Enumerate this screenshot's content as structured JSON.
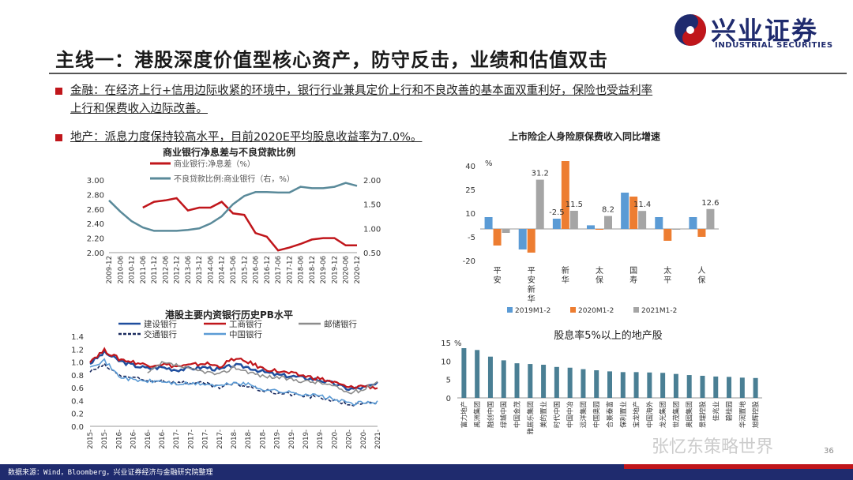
{
  "header": {
    "title": "主线一：港股深度价值型核心资产，防守反击，业绩和估值双击",
    "logo_text": "兴业证券",
    "logo_sub": "INDUSTRIAL SECURITIES"
  },
  "bullets": [
    {
      "line1": "金融：在经济上行+信用边际收紧的环境中，银行行业兼具定价上行和不良改善的基本面双重利好，保险也受益利率",
      "line2": "上行和保费收入边际改善。"
    },
    {
      "line1": "地产：派息力度保持较高水平，目前2020E平均股息收益率为7.0%。",
      "line2": ""
    }
  ],
  "footer": {
    "source": "数据来源：Wind，Bloomberg，兴业证券经济与金融研究院整理",
    "page": "36",
    "watermark": "张忆东策略世界"
  },
  "colors": {
    "brand_blue": "#1f2b6e",
    "brand_red": "#c0161b"
  },
  "chart_data": [
    {
      "type": "line",
      "title": "商业银行净息差与不良贷款比例",
      "x": [
        "2009-12",
        "2010-06",
        "2010-12",
        "2011-06",
        "2011-12",
        "2012-06",
        "2012-12",
        "2013-06",
        "2013-12",
        "2014-06",
        "2014-12",
        "2015-06",
        "2015-12",
        "2016-06",
        "2016-12",
        "2017-06",
        "2017-12",
        "2018-06",
        "2018-12",
        "2019-06",
        "2019-12",
        "2020-06",
        "2020-12"
      ],
      "ylim": [
        2.0,
        3.0
      ],
      "y2lim": [
        0.5,
        2.0
      ],
      "yticks": [
        "3.00",
        "2.80",
        "2.60",
        "2.40",
        "2.20",
        "2.00"
      ],
      "y2ticks": [
        "2.00",
        "1.50",
        "1.00",
        "0.50"
      ],
      "series": [
        {
          "name": "商业银行:净息差（%）",
          "axis": "left",
          "color": "#c0161b",
          "values": [
            null,
            null,
            null,
            2.62,
            2.7,
            2.72,
            2.75,
            2.58,
            2.62,
            2.62,
            2.7,
            2.54,
            2.52,
            2.27,
            2.22,
            2.03,
            2.07,
            2.12,
            2.18,
            2.2,
            2.2,
            2.1,
            2.1
          ]
        },
        {
          "name": "不良贷款比例:商业银行（右，%）",
          "axis": "right",
          "color": "#5a8a9a",
          "values": [
            1.58,
            1.35,
            1.15,
            1.02,
            0.95,
            0.95,
            0.95,
            0.97,
            1.0,
            1.1,
            1.25,
            1.5,
            1.67,
            1.75,
            1.75,
            1.74,
            1.74,
            1.86,
            1.83,
            1.83,
            1.86,
            1.94,
            1.88
          ]
        }
      ]
    },
    {
      "type": "bar",
      "title": "上市险企人身险原保费收入同比增速",
      "ylabel": "%",
      "ylim": [
        -20,
        45
      ],
      "yticks": [
        "40",
        "25",
        "10",
        "-5",
        "-20"
      ],
      "categories": [
        "平安",
        "平安新华",
        "新华",
        "太保",
        "国寿",
        "太平",
        "人保"
      ],
      "category_lines": [
        [
          "平",
          "安"
        ],
        [
          "平",
          "安",
          "新",
          "华"
        ],
        [
          "新",
          "华"
        ],
        [
          "太",
          "保"
        ],
        [
          "国",
          "寿"
        ],
        [
          "太",
          "平"
        ],
        [
          "人",
          "保"
        ]
      ],
      "series": [
        {
          "name": "2019M1-2",
          "color": "#5b9bd5",
          "values": [
            7.5,
            -13,
            6.5,
            2.3,
            23,
            7.5,
            7.5
          ]
        },
        {
          "name": "2020M1-2",
          "color": "#ed7d31",
          "values": [
            -10.5,
            -15,
            43,
            -0.5,
            20.5,
            -7.5,
            -5
          ]
        },
        {
          "name": "2021M1-2",
          "color": "#a5a5a5",
          "values": [
            -2.5,
            31.2,
            11.5,
            8.2,
            11.4,
            -0.5,
            12.6
          ]
        }
      ],
      "data_labels": [
        "31.2",
        "-2.5",
        "11.5",
        "8.2",
        "11.4",
        "12.6"
      ]
    },
    {
      "type": "line",
      "title": "港股主要内资银行历史PB水平",
      "ylim": [
        0,
        1.4
      ],
      "yticks": [
        "1.4",
        "1.2",
        "1.0",
        "0.8",
        "0.6",
        "0.4",
        "0.2",
        "0.0"
      ],
      "x": [
        "2015-",
        "2015-",
        "2016-",
        "2016-",
        "2016-",
        "2016-",
        "2017-",
        "2017-",
        "2017-",
        "2017-",
        "2018-",
        "2018-",
        "2018-",
        "2019-",
        "2019-",
        "2019-",
        "2019-",
        "2020-",
        "2020-",
        "2020-",
        "2021-"
      ],
      "series": [
        {
          "name": "建设银行",
          "color": "#1f4e9e"
        },
        {
          "name": "工商银行",
          "color": "#c0161b"
        },
        {
          "name": "邮储银行",
          "color": "#8c8c8c"
        },
        {
          "name": "交通银行",
          "color": "#1a2a5e"
        },
        {
          "name": "中国银行",
          "color": "#5b9bd5"
        }
      ]
    },
    {
      "type": "bar",
      "title": "股息率5%以上的地产股",
      "ylabel": "%",
      "ylim": [
        0,
        15
      ],
      "yticks": [
        "15",
        "10",
        "5",
        "0"
      ],
      "color": "#4a7f94",
      "categories": [
        "富力地产",
        "禹洲集团",
        "融创中国",
        "绿城中国",
        "中国金茂",
        "雅居乐集团",
        "美的置业",
        "时代中国",
        "中国中冶",
        "远洋集团",
        "中国奥园",
        "合景泰富",
        "保利置业",
        "宝龙地产",
        "中国海外",
        "龙光集团",
        "世茂集团",
        "奥园集团",
        "景瑞控股",
        "佳兆业",
        "碧桂园",
        "华润置地",
        "旭辉控股"
      ],
      "values": [
        13.5,
        13.0,
        11.2,
        10.2,
        9.4,
        9.2,
        9.0,
        8.4,
        8.2,
        7.8,
        7.5,
        7.2,
        7.0,
        7.0,
        6.9,
        6.8,
        6.5,
        6.2,
        6.0,
        5.8,
        5.7,
        5.5,
        5.4
      ]
    }
  ]
}
